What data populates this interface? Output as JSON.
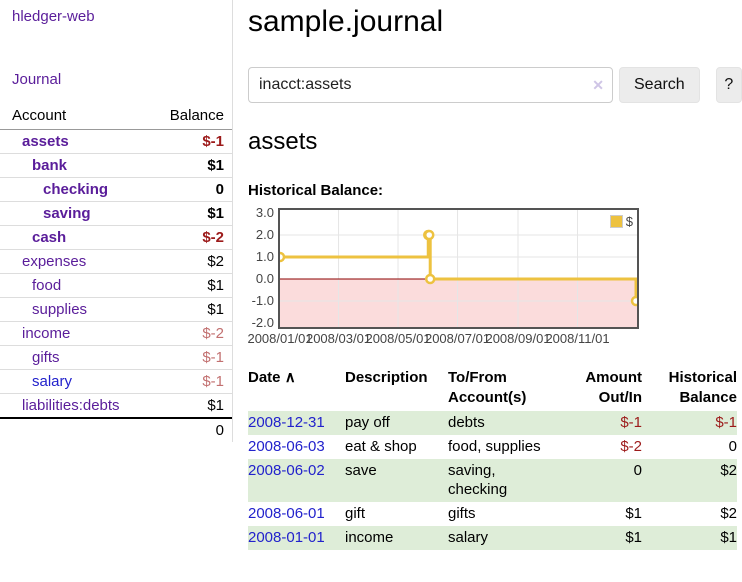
{
  "sidebar": {
    "app_title": "hledger-web",
    "journal_link": "Journal",
    "account_header": "Account",
    "balance_header": "Balance",
    "accounts": [
      {
        "name": "assets",
        "balance": "$-1",
        "level": 1,
        "bold": true,
        "balance_class": "neg",
        "link_color": "purple"
      },
      {
        "name": "bank",
        "balance": "$1",
        "level": 2,
        "bold": true,
        "balance_class": "pos",
        "link_color": "purple"
      },
      {
        "name": "checking",
        "balance": "0",
        "level": 3,
        "bold": true,
        "balance_class": "pos",
        "link_color": "purple"
      },
      {
        "name": "saving",
        "balance": "$1",
        "level": 3,
        "bold": true,
        "balance_class": "pos",
        "link_color": "purple"
      },
      {
        "name": "cash",
        "balance": "$-2",
        "level": 2,
        "bold": true,
        "balance_class": "neg",
        "link_color": "purple"
      },
      {
        "name": "expenses",
        "balance": "$2",
        "level": 1,
        "bold": false,
        "balance_class": "pos",
        "link_color": "purple"
      },
      {
        "name": "food",
        "balance": "$1",
        "level": 2,
        "bold": false,
        "balance_class": "pos",
        "link_color": "purple"
      },
      {
        "name": "supplies",
        "balance": "$1",
        "level": 2,
        "bold": false,
        "balance_class": "pos",
        "link_color": "purple"
      },
      {
        "name": "income",
        "balance": "$-2",
        "level": 1,
        "bold": false,
        "balance_class": "neg-light",
        "link_color": "purple"
      },
      {
        "name": "gifts",
        "balance": "$-1",
        "level": 2,
        "bold": false,
        "balance_class": "neg-light",
        "link_color": "purple"
      },
      {
        "name": "salary",
        "balance": "$-1",
        "level": 2,
        "bold": false,
        "balance_class": "neg-light",
        "link_color": "blue"
      },
      {
        "name": "liabilities:debts",
        "balance": "$1",
        "level": 1,
        "bold": false,
        "balance_class": "pos",
        "link_color": "purple"
      }
    ],
    "total": "0"
  },
  "main": {
    "title": "sample.journal",
    "search": {
      "query": "inacct:assets",
      "clear_icon": "✕",
      "search_button": "Search",
      "help_button": "?"
    },
    "account_heading": "assets",
    "chart_label": "Historical Balance:",
    "register_table": {
      "headers": {
        "date": "Date",
        "sort_icon": "∧",
        "description": "Description",
        "account_line1": "To/From",
        "account_line2": "Account(s)",
        "amount_line1": "Amount",
        "amount_line2": "Out/In",
        "balance_line1": "Historical",
        "balance_line2": "Balance"
      },
      "rows": [
        {
          "date": "2008-12-31",
          "description": "pay off",
          "accounts": "debts",
          "amount": "$-1",
          "amount_neg": true,
          "balance": "$-1",
          "balance_neg": true
        },
        {
          "date": "2008-06-03",
          "description": "eat & shop",
          "accounts": "food, supplies",
          "amount": "$-2",
          "amount_neg": true,
          "balance": "0",
          "balance_neg": false
        },
        {
          "date": "2008-06-02",
          "description": "save",
          "accounts": "saving, checking",
          "amount": "0",
          "amount_neg": false,
          "balance": "$2",
          "balance_neg": false
        },
        {
          "date": "2008-06-01",
          "description": "gift",
          "accounts": "gifts",
          "amount": "$1",
          "amount_neg": false,
          "balance": "$2",
          "balance_neg": false
        },
        {
          "date": "2008-01-01",
          "description": "income",
          "accounts": "salary",
          "amount": "$1",
          "amount_neg": false,
          "balance": "$1",
          "balance_neg": false
        }
      ]
    }
  },
  "chart_data": {
    "type": "line",
    "step": true,
    "title": "Historical Balance",
    "x": [
      "2008-01-01",
      "2008-06-01",
      "2008-06-02",
      "2008-06-03",
      "2008-12-31"
    ],
    "series": [
      {
        "name": "$",
        "values": [
          1,
          2,
          2,
          0,
          -1
        ]
      }
    ],
    "x_range": [
      "2008-01-01",
      "2009-01-01"
    ],
    "ylim": [
      -2,
      3
    ],
    "yticks": [
      {
        "label": "3.0",
        "value": 3
      },
      {
        "label": "2.0",
        "value": 2
      },
      {
        "label": "1.0",
        "value": 1
      },
      {
        "label": "0.0",
        "value": 0
      },
      {
        "label": "-1.0",
        "value": -1
      },
      {
        "label": "-2.0",
        "value": -2
      }
    ],
    "xticks": [
      {
        "label": "2008/01/01",
        "date": "2008-01-01"
      },
      {
        "label": "2008/03/01",
        "date": "2008-03-01"
      },
      {
        "label": "2008/05/01",
        "date": "2008-05-01"
      },
      {
        "label": "2008/07/01",
        "date": "2008-07-01"
      },
      {
        "label": "2008/09/01",
        "date": "2008-09-01"
      },
      {
        "label": "2008/11/01",
        "date": "2008-11-01"
      }
    ],
    "legend": {
      "label": "$",
      "position": "top-right"
    },
    "grid": true,
    "colors": {
      "line": "#EDC240",
      "marker_fill": "#FFFFFF",
      "zero_line": "#8B0000",
      "negative_region": "#FBDCDC",
      "grid": "#E6E6E6",
      "border": "#545454",
      "tick_text": "#444444"
    }
  }
}
